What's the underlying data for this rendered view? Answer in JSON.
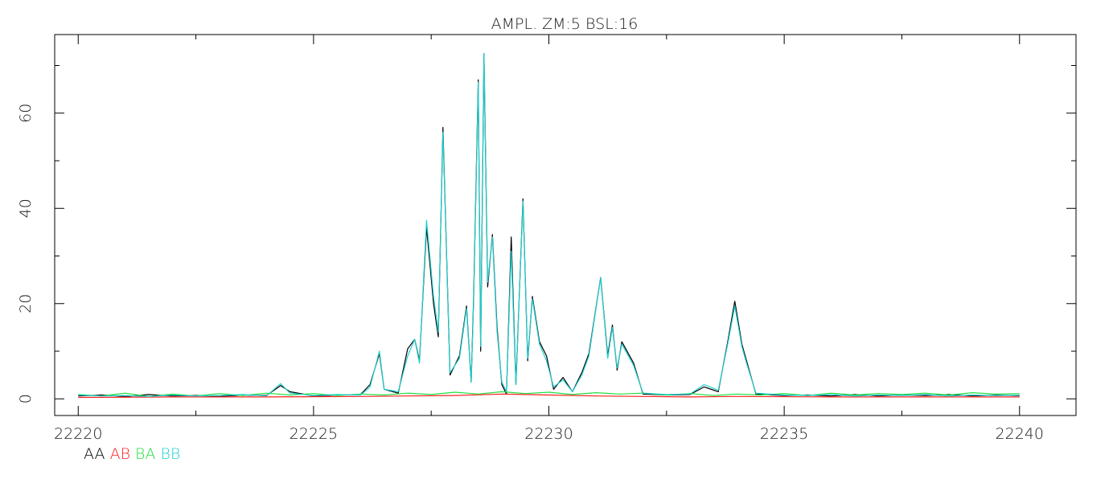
{
  "chart_data": {
    "type": "line",
    "title": "AMPL. ZM:5 BSL:16",
    "xlabel": "",
    "ylabel": "",
    "xlim": [
      22219.5,
      22241.2
    ],
    "ylim": [
      -3.5,
      76.5
    ],
    "x_ticks": [
      22220,
      22225,
      22230,
      22235,
      22240
    ],
    "x_tick_labels": [
      "22220",
      "22225",
      "22230",
      "22235",
      "22240"
    ],
    "y_ticks": [
      0,
      20,
      40,
      60
    ],
    "y_tick_labels": [
      "0",
      "20",
      "40",
      "60"
    ],
    "grid": false,
    "legend_position": "bottom-left",
    "series": [
      {
        "name": "AA",
        "color": "#000000",
        "points": [
          [
            22220.0,
            0.6
          ],
          [
            22220.5,
            0.8
          ],
          [
            22221.0,
            0.5
          ],
          [
            22221.5,
            0.9
          ],
          [
            22222.0,
            0.6
          ],
          [
            22222.5,
            0.7
          ],
          [
            22223.0,
            0.5
          ],
          [
            22223.5,
            0.8
          ],
          [
            22224.0,
            0.7
          ],
          [
            22224.3,
            2.8
          ],
          [
            22224.5,
            1.5
          ],
          [
            22225.0,
            0.6
          ],
          [
            22225.5,
            0.8
          ],
          [
            22226.0,
            0.9
          ],
          [
            22226.2,
            3.0
          ],
          [
            22226.4,
            9.5
          ],
          [
            22226.5,
            2.0
          ],
          [
            22226.8,
            1.2
          ],
          [
            22227.0,
            10.5
          ],
          [
            22227.15,
            12.5
          ],
          [
            22227.25,
            8.0
          ],
          [
            22227.4,
            36.0
          ],
          [
            22227.55,
            20.0
          ],
          [
            22227.65,
            13.0
          ],
          [
            22227.75,
            57.0
          ],
          [
            22227.9,
            5.0
          ],
          [
            22228.1,
            9.0
          ],
          [
            22228.25,
            19.5
          ],
          [
            22228.35,
            3.5
          ],
          [
            22228.4,
            21.0
          ],
          [
            22228.5,
            67.0
          ],
          [
            22228.55,
            10.0
          ],
          [
            22228.62,
            72.5
          ],
          [
            22228.7,
            23.5
          ],
          [
            22228.8,
            34.5
          ],
          [
            22228.9,
            15.0
          ],
          [
            22229.0,
            3.0
          ],
          [
            22229.1,
            1.0
          ],
          [
            22229.2,
            34.0
          ],
          [
            22229.3,
            3.0
          ],
          [
            22229.45,
            42.0
          ],
          [
            22229.55,
            8.0
          ],
          [
            22229.65,
            21.5
          ],
          [
            22229.8,
            12.0
          ],
          [
            22229.95,
            9.0
          ],
          [
            22230.1,
            2.0
          ],
          [
            22230.3,
            4.5
          ],
          [
            22230.5,
            1.5
          ],
          [
            22230.7,
            5.5
          ],
          [
            22230.85,
            9.5
          ],
          [
            22231.1,
            25.5
          ],
          [
            22231.25,
            9.0
          ],
          [
            22231.35,
            15.5
          ],
          [
            22231.45,
            6.0
          ],
          [
            22231.55,
            12.0
          ],
          [
            22231.8,
            7.5
          ],
          [
            22232.0,
            1.0
          ],
          [
            22232.5,
            0.8
          ],
          [
            22233.0,
            0.9
          ],
          [
            22233.3,
            2.5
          ],
          [
            22233.6,
            1.5
          ],
          [
            22233.8,
            12.0
          ],
          [
            22233.95,
            20.5
          ],
          [
            22234.1,
            11.5
          ],
          [
            22234.2,
            8.0
          ],
          [
            22234.4,
            1.0
          ],
          [
            22235.0,
            0.7
          ],
          [
            22235.5,
            0.8
          ],
          [
            22236.0,
            0.6
          ],
          [
            22236.5,
            0.9
          ],
          [
            22237.0,
            0.6
          ],
          [
            22237.5,
            0.8
          ],
          [
            22238.0,
            0.7
          ],
          [
            22238.5,
            0.9
          ],
          [
            22239.0,
            0.6
          ],
          [
            22239.5,
            0.8
          ],
          [
            22240.0,
            0.7
          ]
        ]
      },
      {
        "name": "AB",
        "color": "#ff2020",
        "points": [
          [
            22220.0,
            0.3
          ],
          [
            22222.0,
            0.4
          ],
          [
            22224.0,
            0.4
          ],
          [
            22226.0,
            0.5
          ],
          [
            22227.0,
            0.6
          ],
          [
            22228.0,
            0.7
          ],
          [
            22229.0,
            1.0
          ],
          [
            22230.0,
            0.8
          ],
          [
            22231.0,
            0.6
          ],
          [
            22232.0,
            0.5
          ],
          [
            22233.0,
            0.4
          ],
          [
            22234.0,
            0.5
          ],
          [
            22236.0,
            0.4
          ],
          [
            22238.0,
            0.4
          ],
          [
            22240.0,
            0.4
          ]
        ]
      },
      {
        "name": "BA",
        "color": "#20e040",
        "points": [
          [
            22220.0,
            0.9
          ],
          [
            22220.5,
            0.6
          ],
          [
            22221.0,
            1.2
          ],
          [
            22221.5,
            0.5
          ],
          [
            22222.0,
            1.0
          ],
          [
            22222.5,
            0.6
          ],
          [
            22223.0,
            1.1
          ],
          [
            22223.5,
            0.7
          ],
          [
            22224.0,
            1.2
          ],
          [
            22224.5,
            0.8
          ],
          [
            22225.0,
            1.1
          ],
          [
            22225.5,
            0.7
          ],
          [
            22226.0,
            1.0
          ],
          [
            22226.5,
            0.8
          ],
          [
            22227.0,
            1.2
          ],
          [
            22227.5,
            0.9
          ],
          [
            22228.0,
            1.4
          ],
          [
            22228.5,
            1.0
          ],
          [
            22229.0,
            1.5
          ],
          [
            22229.5,
            1.1
          ],
          [
            22230.0,
            1.4
          ],
          [
            22230.5,
            0.9
          ],
          [
            22231.0,
            1.3
          ],
          [
            22231.5,
            1.0
          ],
          [
            22232.0,
            1.2
          ],
          [
            22232.5,
            0.8
          ],
          [
            22233.0,
            1.1
          ],
          [
            22233.5,
            0.7
          ],
          [
            22234.0,
            1.0
          ],
          [
            22234.5,
            0.8
          ],
          [
            22235.0,
            1.1
          ],
          [
            22235.5,
            0.7
          ],
          [
            22236.0,
            1.2
          ],
          [
            22236.5,
            0.8
          ],
          [
            22237.0,
            1.1
          ],
          [
            22237.5,
            0.9
          ],
          [
            22238.0,
            1.2
          ],
          [
            22238.5,
            0.8
          ],
          [
            22239.0,
            1.3
          ],
          [
            22239.5,
            1.0
          ],
          [
            22240.0,
            1.1
          ]
        ]
      },
      {
        "name": "BB",
        "color": "#20d0d0",
        "points": [
          [
            22220.0,
            0.8
          ],
          [
            22220.5,
            0.6
          ],
          [
            22221.0,
            0.7
          ],
          [
            22221.5,
            0.5
          ],
          [
            22222.0,
            0.8
          ],
          [
            22222.5,
            0.6
          ],
          [
            22223.0,
            0.7
          ],
          [
            22223.5,
            0.9
          ],
          [
            22224.0,
            0.6
          ],
          [
            22224.3,
            3.2
          ],
          [
            22224.5,
            1.2
          ],
          [
            22225.0,
            0.7
          ],
          [
            22225.5,
            0.9
          ],
          [
            22226.0,
            0.8
          ],
          [
            22226.2,
            2.5
          ],
          [
            22226.4,
            10.0
          ],
          [
            22226.5,
            2.0
          ],
          [
            22226.8,
            1.5
          ],
          [
            22227.0,
            9.0
          ],
          [
            22227.15,
            12.5
          ],
          [
            22227.25,
            7.5
          ],
          [
            22227.4,
            37.5
          ],
          [
            22227.55,
            21.5
          ],
          [
            22227.65,
            14.0
          ],
          [
            22227.75,
            56.0
          ],
          [
            22227.9,
            5.5
          ],
          [
            22228.1,
            8.5
          ],
          [
            22228.25,
            19.0
          ],
          [
            22228.35,
            3.5
          ],
          [
            22228.4,
            20.0
          ],
          [
            22228.5,
            66.5
          ],
          [
            22228.55,
            11.0
          ],
          [
            22228.62,
            72.5
          ],
          [
            22228.7,
            24.5
          ],
          [
            22228.8,
            34.0
          ],
          [
            22228.9,
            14.0
          ],
          [
            22229.0,
            3.5
          ],
          [
            22229.1,
            1.5
          ],
          [
            22229.2,
            31.0
          ],
          [
            22229.3,
            3.0
          ],
          [
            22229.45,
            41.5
          ],
          [
            22229.55,
            8.5
          ],
          [
            22229.65,
            21.0
          ],
          [
            22229.8,
            11.5
          ],
          [
            22229.95,
            8.0
          ],
          [
            22230.1,
            2.5
          ],
          [
            22230.3,
            4.0
          ],
          [
            22230.5,
            1.5
          ],
          [
            22230.7,
            5.0
          ],
          [
            22230.85,
            9.0
          ],
          [
            22231.1,
            25.5
          ],
          [
            22231.25,
            8.5
          ],
          [
            22231.35,
            15.0
          ],
          [
            22231.45,
            6.5
          ],
          [
            22231.55,
            11.5
          ],
          [
            22231.8,
            7.0
          ],
          [
            22232.0,
            1.2
          ],
          [
            22232.5,
            0.9
          ],
          [
            22233.0,
            1.0
          ],
          [
            22233.3,
            3.0
          ],
          [
            22233.6,
            1.8
          ],
          [
            22233.8,
            11.5
          ],
          [
            22233.95,
            19.5
          ],
          [
            22234.1,
            11.0
          ],
          [
            22234.2,
            7.5
          ],
          [
            22234.4,
            1.2
          ],
          [
            22235.0,
            0.8
          ],
          [
            22235.5,
            0.7
          ],
          [
            22236.0,
            0.9
          ],
          [
            22236.5,
            0.6
          ],
          [
            22237.0,
            0.8
          ],
          [
            22237.5,
            0.7
          ],
          [
            22238.0,
            0.9
          ],
          [
            22238.5,
            0.6
          ],
          [
            22239.0,
            0.8
          ],
          [
            22239.5,
            0.7
          ],
          [
            22240.0,
            0.8
          ]
        ]
      }
    ]
  }
}
